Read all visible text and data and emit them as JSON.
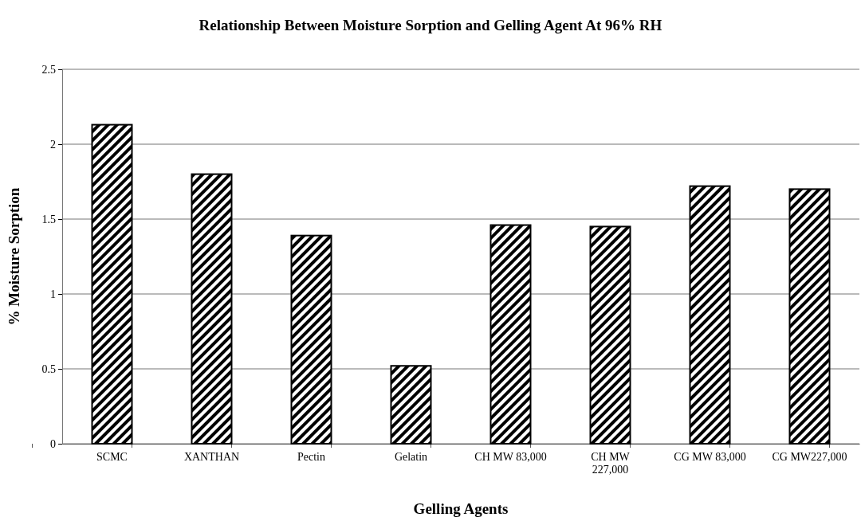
{
  "chart_data": {
    "type": "bar",
    "title": "Relationship Between Moisture Sorption and Gelling Agent At 96% RH",
    "xlabel": "Gelling Agents",
    "ylabel": "% Moisture Sorption",
    "categories": [
      "SCMC",
      "XANTHAN",
      "Pectin",
      "Gelatin",
      "CH MW 83,000",
      "CH MW 227,000",
      "CG MW 83,000",
      "CG MW227,000"
    ],
    "values": [
      2.13,
      1.8,
      1.39,
      0.52,
      1.46,
      1.45,
      1.72,
      1.7
    ],
    "color": "#000000",
    "ylim": [
      0,
      2.5
    ],
    "yticks": [
      0,
      {
        "value": 0.5,
        "label": "0.5"
      },
      1,
      {
        "value": 1.5,
        "label": "1.5"
      },
      2,
      {
        "value": 2.5,
        "label": "2.5"
      }
    ],
    "grid": "y"
  }
}
